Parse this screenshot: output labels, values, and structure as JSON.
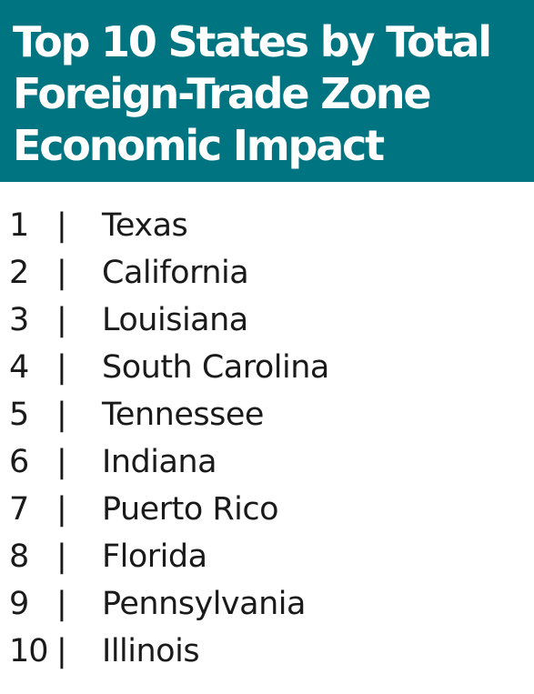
{
  "title": {
    "lines": [
      "Top 10 States by Total",
      "Foreign-Trade Zone",
      "Economic Impact"
    ]
  },
  "separator": "|",
  "ranking": [
    {
      "rank": "1",
      "state": "Texas"
    },
    {
      "rank": "2",
      "state": "California"
    },
    {
      "rank": "3",
      "state": "Louisiana"
    },
    {
      "rank": "4",
      "state": "South Carolina"
    },
    {
      "rank": "5",
      "state": "Tennessee"
    },
    {
      "rank": "6",
      "state": "Indiana"
    },
    {
      "rank": "7",
      "state": "Puerto Rico"
    },
    {
      "rank": "8",
      "state": "Florida"
    },
    {
      "rank": "9",
      "state": "Pennsylvania"
    },
    {
      "rank": "10",
      "state": "Illinois"
    }
  ],
  "colors": {
    "header_background": "#007480",
    "header_text": "#ffffff",
    "body_text": "#1a1a1a"
  }
}
